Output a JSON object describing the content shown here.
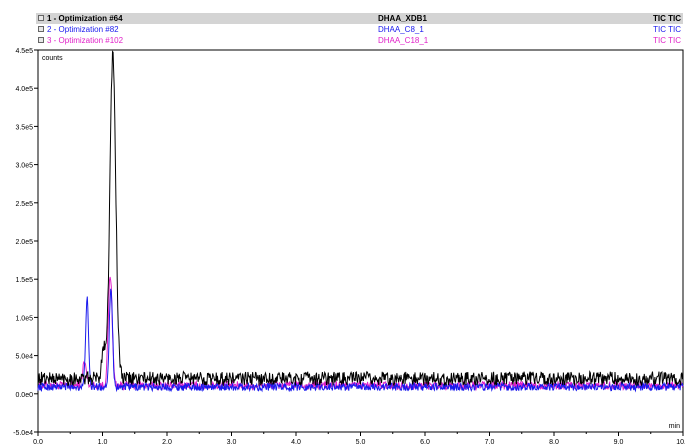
{
  "legend": [
    {
      "name": "1 - Optimization #64",
      "sample": "DHAA_XDB1",
      "trace": "TIC TIC",
      "color": "#000000",
      "selected": true
    },
    {
      "name": "2 - Optimization #82",
      "sample": "DHAA_C8_1",
      "trace": "TIC TIC",
      "color": "#1a1aee",
      "selected": false
    },
    {
      "name": "3 - Optimization #102",
      "sample": "DHAA_C18_1",
      "trace": "TIC TIC",
      "color": "#e020c8",
      "selected": false
    }
  ],
  "chart_data": {
    "type": "line",
    "ylabel": "counts",
    "xlabel": "min",
    "xlim": [
      0.0,
      10.0
    ],
    "ylim": [
      -50000,
      450000
    ],
    "yticks": [
      "-5.0e4",
      "0.0e0",
      "5.0e4",
      "1.0e5",
      "1.5e5",
      "2.0e5",
      "2.5e5",
      "3.0e5",
      "3.5e5",
      "4.0e5",
      "4.5e5"
    ],
    "ytick_values": [
      -50000,
      0,
      50000,
      100000,
      150000,
      200000,
      250000,
      300000,
      350000,
      400000,
      450000
    ],
    "xticks": [
      "0.0",
      "1.0",
      "2.0",
      "3.0",
      "4.0",
      "5.0",
      "6.0",
      "7.0",
      "8.0",
      "9.0",
      "10.0"
    ],
    "xtick_values": [
      0,
      1,
      2,
      3,
      4,
      5,
      6,
      7,
      8,
      9,
      10
    ],
    "grid": false,
    "series": [
      {
        "name": "1 - Optimization #64",
        "color": "#000000",
        "baseline": 20000,
        "noise": 9000,
        "peaks": [
          {
            "x": 1.16,
            "y": 425000,
            "w": 0.045
          },
          {
            "x": 1.02,
            "y": 42000,
            "w": 0.03
          }
        ]
      },
      {
        "name": "2 - Optimization #82",
        "color": "#1a1aee",
        "baseline": 9000,
        "noise": 5000,
        "peaks": [
          {
            "x": 0.76,
            "y": 118000,
            "w": 0.022
          },
          {
            "x": 1.13,
            "y": 130000,
            "w": 0.025
          }
        ]
      },
      {
        "name": "3 - Optimization #102",
        "color": "#e020c8",
        "baseline": 11000,
        "noise": 5500,
        "peaks": [
          {
            "x": 1.12,
            "y": 145000,
            "w": 0.03
          },
          {
            "x": 0.72,
            "y": 30000,
            "w": 0.03
          }
        ]
      }
    ]
  }
}
